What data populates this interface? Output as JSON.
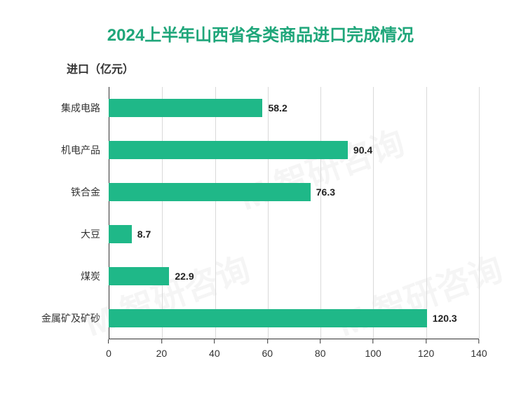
{
  "chart": {
    "type": "bar",
    "orientation": "horizontal",
    "title": "2024上半年山西省各类商品进口完成情况",
    "title_color": "#1fa67a",
    "title_fontsize": 24,
    "title_fontweight": "bold",
    "y_axis_label": "进口（亿元）",
    "y_axis_label_fontsize": 16,
    "y_axis_label_color": "#333333",
    "categories": [
      "集成电路",
      "机电产品",
      "铁合金",
      "大豆",
      "煤炭",
      "金属矿及矿砂"
    ],
    "values": [
      58.2,
      90.4,
      76.3,
      8.7,
      22.9,
      120.3
    ],
    "bar_color": "#1fb888",
    "value_label_color": "#222222",
    "value_label_fontsize": 14,
    "category_label_color": "#333333",
    "category_label_fontsize": 14,
    "xlim": [
      0,
      140
    ],
    "xtick_step": 20,
    "xtick_values": [
      0,
      20,
      40,
      60,
      80,
      100,
      120,
      140
    ],
    "xtick_fontsize": 14,
    "xtick_color": "#333333",
    "grid_color": "#d9d9d9",
    "axis_color": "#333333",
    "background_color": "#ffffff",
    "bar_height_ratio": 0.42,
    "watermark_text": "M 智研咨询",
    "watermark_color": "rgba(0,0,0,0.04)"
  }
}
